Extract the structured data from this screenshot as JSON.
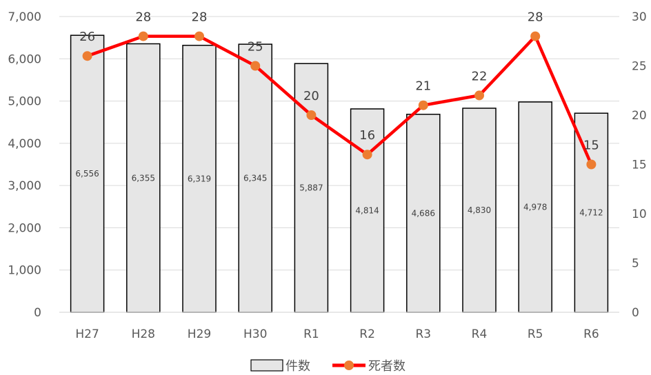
{
  "chart_data": {
    "type": "bar+line",
    "categories": [
      "H27",
      "H28",
      "H29",
      "H30",
      "R1",
      "R2",
      "R3",
      "R4",
      "R5",
      "R6"
    ],
    "series": [
      {
        "name": "件数",
        "type": "bar",
        "axis": "left",
        "values": [
          6556,
          6355,
          6319,
          6345,
          5887,
          4814,
          4686,
          4830,
          4978,
          4712
        ],
        "labels": [
          "6,556",
          "6,355",
          "6,319",
          "6,345",
          "5,887",
          "4,814",
          "4,686",
          "4,830",
          "4,978",
          "4,712"
        ],
        "fill": "#e6e6e6",
        "stroke": "#000000"
      },
      {
        "name": "死者数",
        "type": "line",
        "axis": "right",
        "values": [
          26,
          28,
          28,
          25,
          20,
          16,
          21,
          22,
          28,
          15
        ],
        "line_color": "#ff0000",
        "marker_color": "#ed7d31"
      }
    ],
    "left_axis": {
      "ylim": [
        0,
        7000
      ],
      "ticks": [
        0,
        1000,
        2000,
        3000,
        4000,
        5000,
        6000,
        7000
      ],
      "tick_labels": [
        "0",
        "1,000",
        "2,000",
        "3,000",
        "4,000",
        "5,000",
        "6,000",
        "7,000"
      ]
    },
    "right_axis": {
      "ylim": [
        0,
        30
      ],
      "ticks": [
        0,
        5,
        10,
        15,
        20,
        25,
        30
      ],
      "tick_labels": [
        "0",
        "5",
        "10",
        "15",
        "20",
        "25",
        "30"
      ]
    },
    "grid": true,
    "legend_position": "bottom-center",
    "title": "",
    "xlabel": "",
    "ylabel": ""
  },
  "legend": {
    "bar_label": "件数",
    "line_label": "死者数"
  }
}
